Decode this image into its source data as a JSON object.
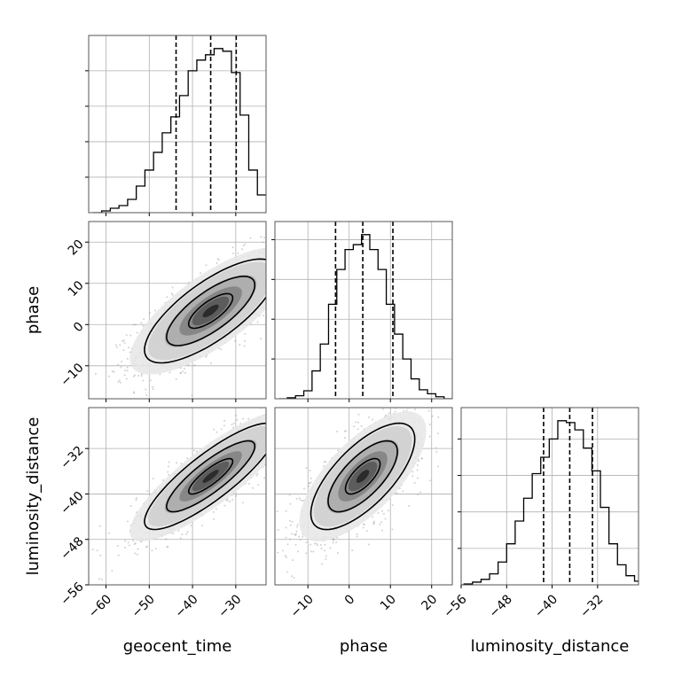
{
  "chart_data": {
    "type": "corner",
    "grid": true,
    "parameters": [
      {
        "name": "geocent_time",
        "label": "geocent_time",
        "range": [
          -64,
          -23
        ],
        "ticks": [
          -60,
          -50,
          -40,
          -30
        ],
        "tick_labels": [
          "−60",
          "−50",
          "−40",
          "−30"
        ],
        "quantiles": [
          -43.8,
          -35.8,
          -29.9
        ]
      },
      {
        "name": "phase",
        "label": "phase",
        "range": [
          -18,
          25
        ],
        "ticks": [
          -10,
          0,
          10,
          20
        ],
        "tick_labels": [
          "−10",
          "0",
          "10",
          "20"
        ],
        "quantiles": [
          -3.3,
          3.3,
          10.6
        ]
      },
      {
        "name": "luminosity_distance",
        "label": "luminosity_distance",
        "range": [
          -56,
          -24.8
        ],
        "ticks": [
          -56,
          -48,
          -40,
          -32
        ],
        "tick_labels": [
          "−56",
          "−48",
          "−40",
          "−32"
        ],
        "quantiles": [
          -41.5,
          -36.9,
          -32.9
        ]
      }
    ],
    "histograms": [
      {
        "parameter": "geocent_time",
        "bins": [
          -63,
          -61,
          -59,
          -57,
          -55,
          -53,
          -51,
          -49,
          -47,
          -45,
          -43,
          -41,
          -39,
          -37,
          -35,
          -33,
          -31,
          -29,
          -27,
          -25,
          -23
        ],
        "counts": [
          0,
          2,
          5,
          8,
          15,
          30,
          48,
          68,
          90,
          108,
          132,
          160,
          172,
          178,
          185,
          182,
          158,
          110,
          48,
          20
        ]
      },
      {
        "parameter": "phase",
        "bins": [
          -17,
          -15,
          -13,
          -11,
          -9,
          -7,
          -5,
          -3,
          -1,
          1,
          3,
          5,
          7,
          9,
          11,
          13,
          15,
          17,
          19,
          21,
          23,
          25
        ],
        "counts": [
          0,
          1,
          3,
          8,
          28,
          55,
          95,
          130,
          150,
          155,
          165,
          150,
          130,
          95,
          65,
          40,
          20,
          9,
          5,
          2,
          0
        ]
      },
      {
        "parameter": "luminosity_distance",
        "bins": [
          -57,
          -55.5,
          -54,
          -52.5,
          -51,
          -49.5,
          -48,
          -46.5,
          -45,
          -43.5,
          -42,
          -40.5,
          -39,
          -37.5,
          -36,
          -34.5,
          -33,
          -31.5,
          -30,
          -28.5,
          -27,
          -25.5,
          -24
        ],
        "counts": [
          0,
          1,
          3,
          6,
          12,
          25,
          45,
          70,
          95,
          122,
          140,
          160,
          180,
          178,
          170,
          150,
          125,
          85,
          45,
          22,
          10,
          4
        ]
      }
    ],
    "joint_distributions": [
      {
        "x": "geocent_time",
        "y": "phase",
        "mean": [
          -35.8,
          3.3
        ],
        "sd": [
          8.5,
          7.0
        ],
        "correlation": 0.75,
        "samples": 1500
      },
      {
        "x": "geocent_time",
        "y": "luminosity_distance",
        "mean": [
          -35.8,
          -36.9
        ],
        "sd": [
          8.5,
          5.2
        ],
        "correlation": 0.85,
        "samples": 1500
      },
      {
        "x": "phase",
        "y": "luminosity_distance",
        "mean": [
          3.3,
          -36.9
        ],
        "sd": [
          7.0,
          5.2
        ],
        "correlation": 0.7,
        "samples": 1500
      }
    ],
    "contour_levels": [
      0.5,
      1.0,
      1.5
    ]
  }
}
